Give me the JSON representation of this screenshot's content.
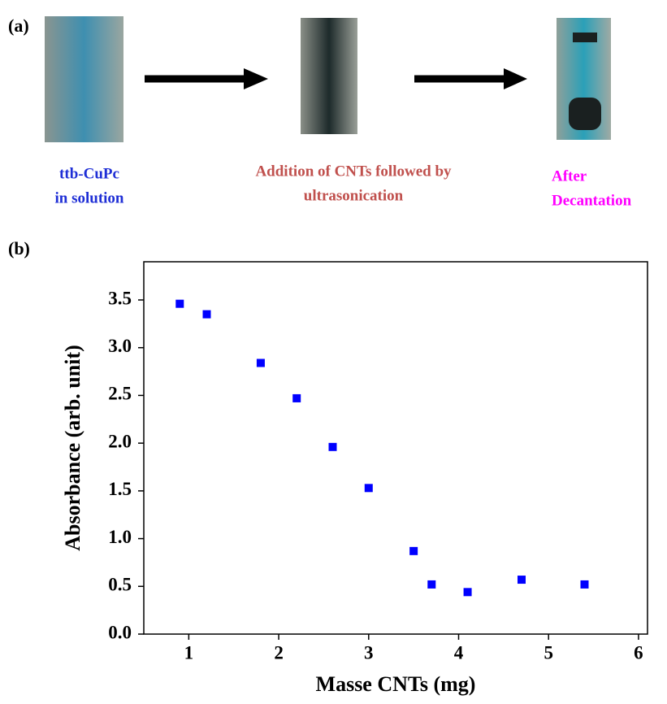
{
  "figure_a": {
    "label": "(a)",
    "captions": [
      {
        "lines": [
          "ttb-CuPc",
          "in solution"
        ],
        "color": "#1f2fd6"
      },
      {
        "lines": [
          "Addition of  CNTs followed by",
          "ultrasonication"
        ],
        "color": "#c0504d"
      },
      {
        "lines": [
          "After",
          "Decantation"
        ],
        "color": "#ff00ff"
      }
    ]
  },
  "figure_b": {
    "label": "(b)"
  },
  "chart_data": {
    "type": "scatter",
    "x_label": "Masse CNTs (mg)",
    "y_label": "Absorbance (arb. unit)",
    "x": [
      0.9,
      1.2,
      1.8,
      2.2,
      2.6,
      3.0,
      3.5,
      3.7,
      4.1,
      4.7,
      5.4
    ],
    "values": [
      3.46,
      3.35,
      2.84,
      2.47,
      1.96,
      1.53,
      0.87,
      0.52,
      0.44,
      0.57,
      0.52
    ],
    "color": "#0000ff",
    "xlim": [
      0.5,
      6.1
    ],
    "ylim": [
      0,
      3.9
    ],
    "xticks": [
      1,
      2,
      3,
      4,
      5,
      6
    ],
    "yticks": [
      {
        "value": 0,
        "label": "0.0"
      },
      0.5,
      {
        "value": 1,
        "label": "1.0"
      },
      1.5,
      {
        "value": 2,
        "label": "2.0"
      },
      2.5,
      {
        "value": 3,
        "label": "3.0"
      },
      3.5
    ]
  }
}
